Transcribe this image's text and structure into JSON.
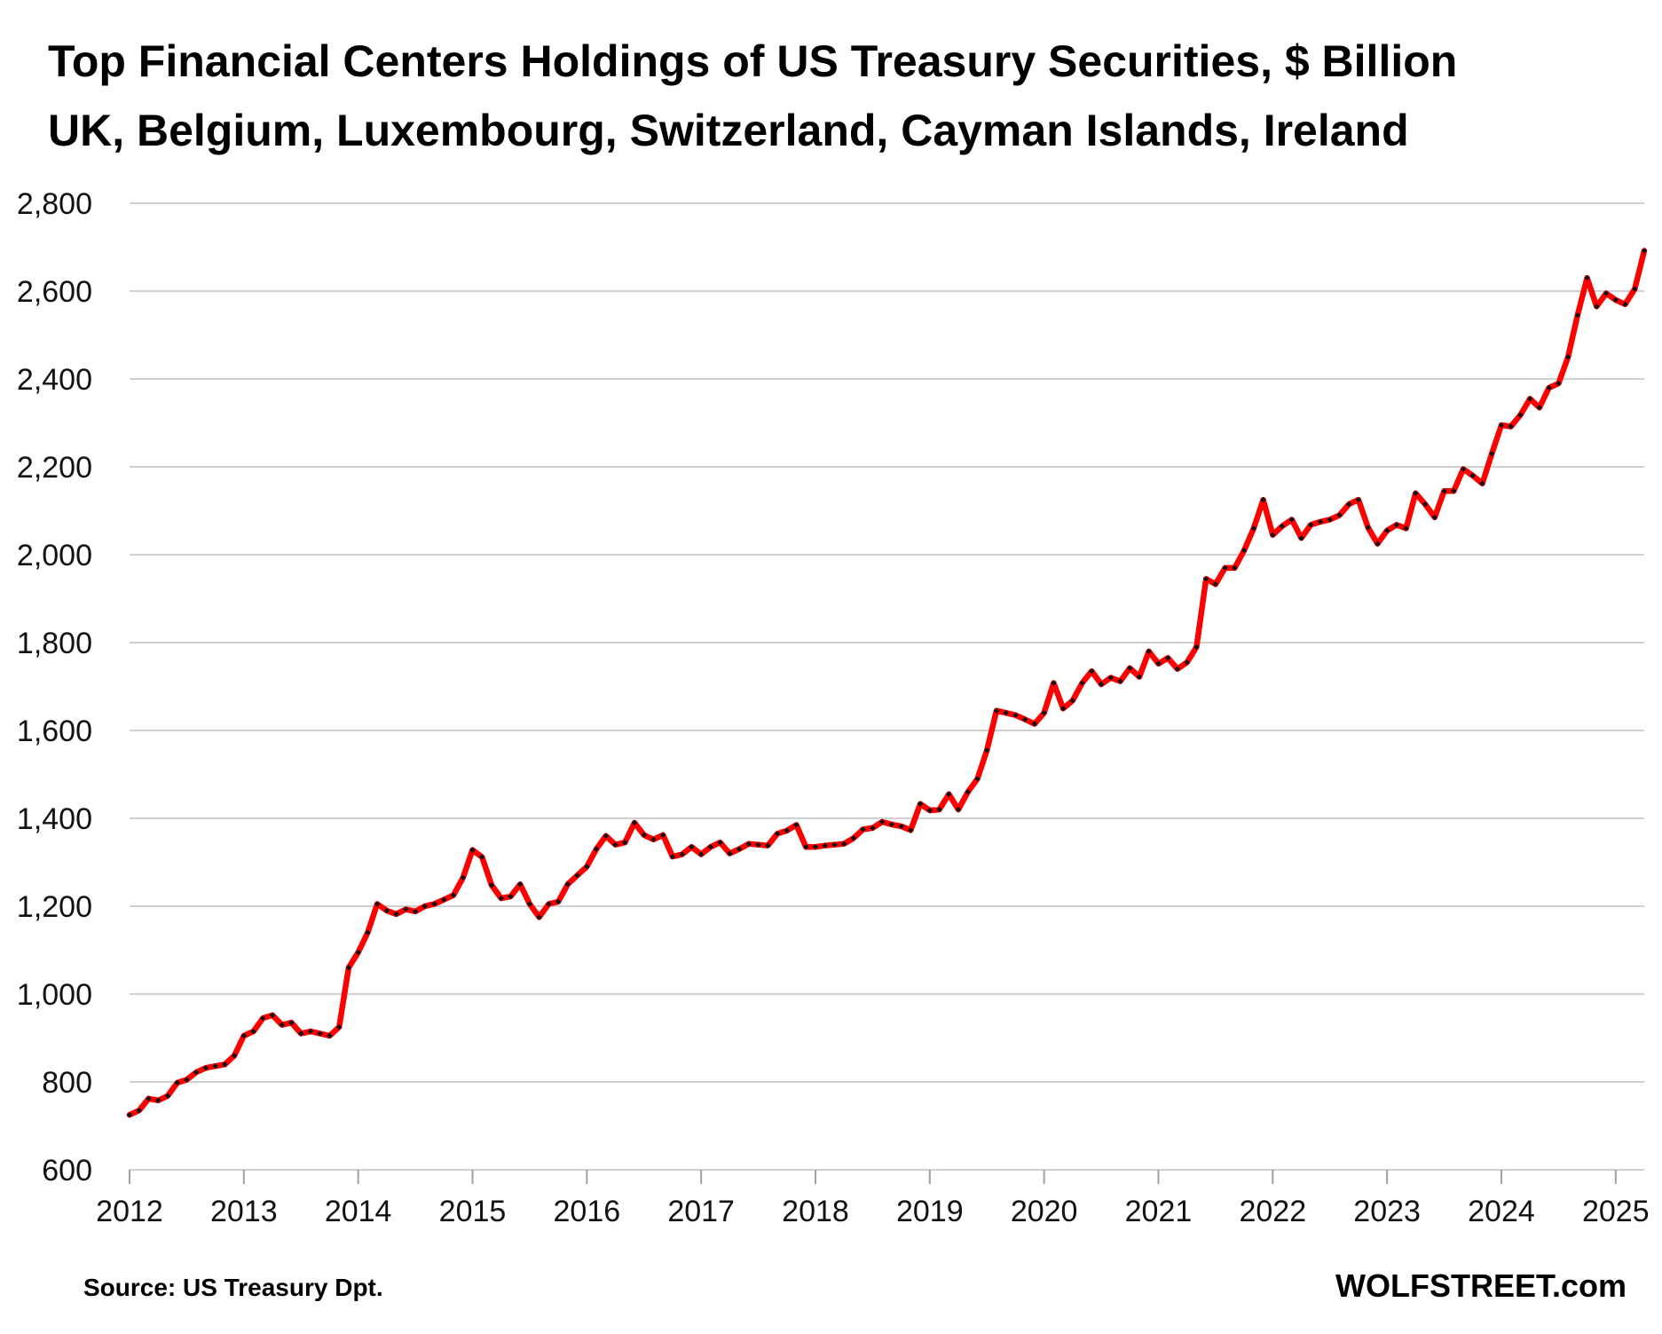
{
  "chart_data": {
    "type": "line",
    "title": "Top Financial Centers Holdings of US Treasury Securities, $ Billion",
    "subtitle": "UK, Belgium, Luxembourg, Switzerland, Cayman Islands, Ireland",
    "xlabel": "",
    "ylabel": "",
    "ylim": [
      600,
      2800
    ],
    "yticks": [
      600,
      800,
      1000,
      1200,
      1400,
      1600,
      1800,
      2000,
      2200,
      2400,
      2600,
      2800
    ],
    "ytick_labels": [
      "600",
      "800",
      "1,000",
      "1,200",
      "1,400",
      "1,600",
      "1,800",
      "2,000",
      "2,200",
      "2,400",
      "2,600",
      "2,800"
    ],
    "x_start": 2012,
    "x_end": 2025.25,
    "x_ticks": [
      "2012",
      "2013",
      "2014",
      "2015",
      "2016",
      "2017",
      "2018",
      "2019",
      "2020",
      "2021",
      "2022",
      "2023",
      "2024",
      "2025"
    ],
    "grid": true,
    "series": [
      {
        "name": "Top Financial Centers",
        "color": "#ff0000",
        "marker_color": "#111111",
        "start": "2012-01",
        "frequency": "monthly",
        "values": [
          725,
          735,
          762,
          758,
          768,
          798,
          805,
          822,
          832,
          836,
          840,
          860,
          905,
          915,
          945,
          952,
          930,
          935,
          910,
          915,
          910,
          905,
          925,
          1060,
          1095,
          1140,
          1205,
          1190,
          1182,
          1193,
          1188,
          1200,
          1205,
          1215,
          1225,
          1265,
          1328,
          1312,
          1248,
          1218,
          1222,
          1250,
          1205,
          1175,
          1205,
          1210,
          1250,
          1270,
          1290,
          1330,
          1360,
          1340,
          1345,
          1390,
          1362,
          1352,
          1362,
          1313,
          1318,
          1335,
          1318,
          1335,
          1345,
          1320,
          1330,
          1342,
          1340,
          1338,
          1365,
          1372,
          1385,
          1335,
          1335,
          1338,
          1340,
          1342,
          1355,
          1375,
          1378,
          1392,
          1386,
          1382,
          1373,
          1433,
          1418,
          1420,
          1455,
          1420,
          1460,
          1490,
          1555,
          1645,
          1640,
          1635,
          1625,
          1615,
          1640,
          1708,
          1650,
          1668,
          1708,
          1735,
          1705,
          1720,
          1712,
          1742,
          1722,
          1780,
          1752,
          1765,
          1740,
          1755,
          1790,
          1945,
          1933,
          1970,
          1970,
          2010,
          2060,
          2125,
          2045,
          2065,
          2080,
          2038,
          2068,
          2075,
          2080,
          2090,
          2115,
          2125,
          2062,
          2025,
          2055,
          2068,
          2060,
          2140,
          2115,
          2085,
          2145,
          2145,
          2195,
          2180,
          2162,
          2230,
          2295,
          2292,
          2318,
          2355,
          2335,
          2380,
          2390,
          2450,
          2545,
          2630,
          2565,
          2595,
          2580,
          2570,
          2605,
          2692
        ]
      }
    ]
  },
  "footer": {
    "source": "Source: US Treasury  Dpt.",
    "brand": "WOLFSTREET.com"
  }
}
